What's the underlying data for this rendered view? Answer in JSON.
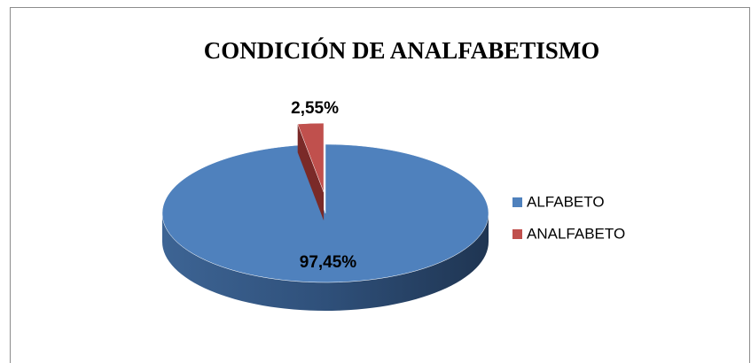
{
  "chart_data": {
    "type": "pie",
    "title": "CONDICIÓN DE ANALFABETISMO",
    "categories": [
      "ALFABETO",
      "ANALFABETO"
    ],
    "values": [
      97.45,
      2.55
    ],
    "value_labels": [
      "97,45%",
      "2,55%"
    ],
    "colors": [
      "#4f81bd",
      "#c0504d"
    ],
    "legend": "right"
  }
}
